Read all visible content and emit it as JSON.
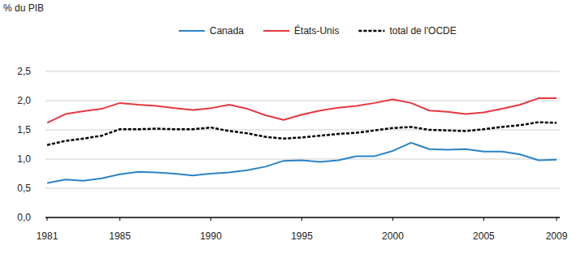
{
  "chart_data": {
    "type": "line",
    "ylabel": "% du PIB",
    "x": [
      1981,
      1982,
      1983,
      1984,
      1985,
      1986,
      1987,
      1988,
      1989,
      1990,
      1991,
      1992,
      1993,
      1994,
      1995,
      1996,
      1997,
      1998,
      1999,
      2000,
      2001,
      2002,
      2003,
      2004,
      2005,
      2006,
      2007,
      2008,
      2009
    ],
    "xlim": [
      1981,
      2009
    ],
    "xticks": [
      1981,
      1985,
      1990,
      1995,
      2000,
      2005,
      2009
    ],
    "ylim": [
      0,
      2.5
    ],
    "yticks": [
      {
        "value": 0,
        "label": "0,0"
      },
      {
        "value": 0.5,
        "label": "0,5"
      },
      {
        "value": 1,
        "label": "1,0"
      },
      {
        "value": 1.5,
        "label": "1,5"
      },
      {
        "value": 2,
        "label": "2,0"
      },
      {
        "value": 2.5,
        "label": "2,5"
      }
    ],
    "grid": true,
    "legend": "top",
    "series": [
      {
        "name": "Canada",
        "color": "#2b83c6",
        "line_style": "solid",
        "values": [
          0.59,
          0.65,
          0.63,
          0.67,
          0.74,
          0.78,
          0.77,
          0.75,
          0.72,
          0.75,
          0.77,
          0.81,
          0.87,
          0.97,
          0.98,
          0.95,
          0.98,
          1.05,
          1.05,
          1.14,
          1.28,
          1.17,
          1.16,
          1.17,
          1.13,
          1.13,
          1.08,
          0.98,
          0.99
        ]
      },
      {
        "name": "États-Unis",
        "color": "#e8383d",
        "line_style": "solid",
        "values": [
          1.62,
          1.77,
          1.82,
          1.86,
          1.96,
          1.93,
          1.91,
          1.87,
          1.84,
          1.87,
          1.93,
          1.86,
          1.75,
          1.67,
          1.76,
          1.83,
          1.88,
          1.91,
          1.96,
          2.02,
          1.96,
          1.83,
          1.81,
          1.77,
          1.8,
          1.86,
          1.93,
          2.04,
          2.04
        ]
      },
      {
        "name": "total de l'OCDE",
        "color": "#000000",
        "line_style": "dashed",
        "values": [
          1.24,
          1.31,
          1.35,
          1.4,
          1.51,
          1.51,
          1.52,
          1.51,
          1.51,
          1.54,
          1.48,
          1.44,
          1.38,
          1.35,
          1.37,
          1.4,
          1.43,
          1.45,
          1.49,
          1.53,
          1.55,
          1.5,
          1.49,
          1.48,
          1.51,
          1.55,
          1.58,
          1.63,
          1.62
        ]
      }
    ]
  }
}
